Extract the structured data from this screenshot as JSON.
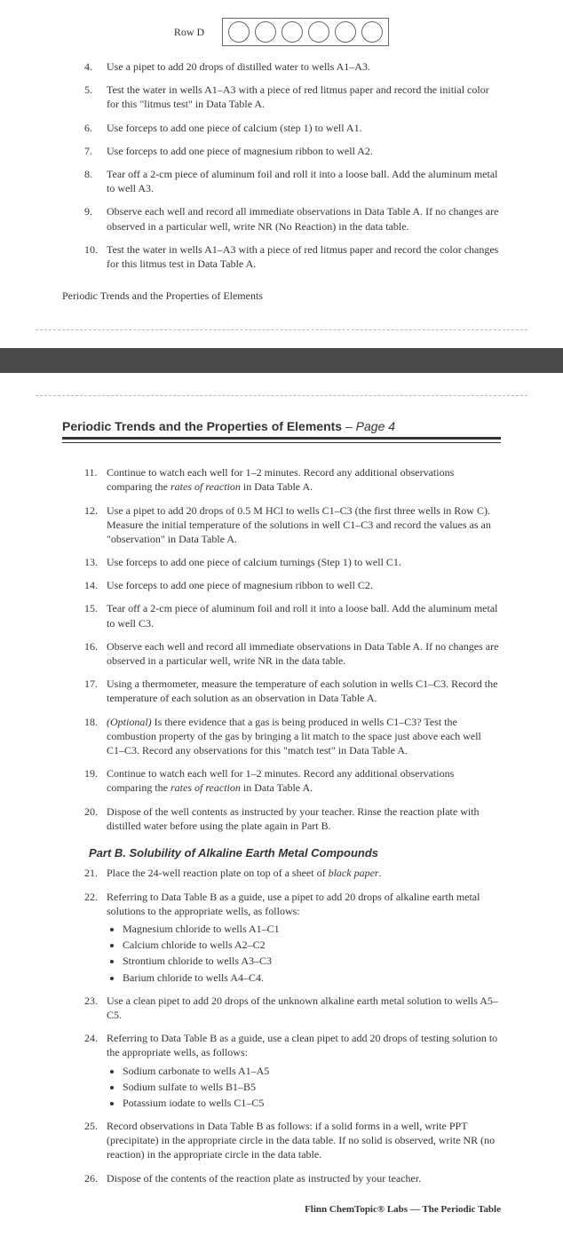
{
  "rowD": {
    "label": "Row D"
  },
  "stepsTop": [
    {
      "n": "4.",
      "t": "Use a pipet to add 20 drops of distilled water to wells A1–A3."
    },
    {
      "n": "5.",
      "t": "Test the water in wells A1–A3 with a piece of red litmus paper and record the initial color for this \"litmus test\" in Data Table A."
    },
    {
      "n": "6.",
      "t": "Use forceps to add one piece of calcium (step 1) to well A1."
    },
    {
      "n": "7.",
      "t": "Use forceps to add one piece of magnesium ribbon to well A2."
    },
    {
      "n": "8.",
      "t": "Tear off a 2-cm piece of aluminum foil and roll it into a loose ball. Add the aluminum metal to well A3."
    },
    {
      "n": "9.",
      "t": "Observe each well and record all immediate observations in Data Table A. If no changes are observed in a particular well, write NR (No Reaction) in the data table."
    },
    {
      "n": "10.",
      "t": "Test the water in wells A1–A3 with a piece of red litmus paper and record the color changes for this litmus test in Data Table A."
    }
  ],
  "footerLabel": "Periodic Trends and the Properties of Elements",
  "pageTitle": {
    "main": "Periodic Trends and the Properties of Elements",
    "suffix": " – Page 4"
  },
  "steps11_20": [
    {
      "n": "11.",
      "html": "Continue to watch each well for 1–2 minutes. Record any additional observations comparing the <em>rates of reaction</em> in Data Table A."
    },
    {
      "n": "12.",
      "html": "Use a pipet to add 20 drops of 0.5 M HCl to wells C1–C3 (the first three wells in Row C). Measure the initial temperature of the solutions in well C1–C3 and record the values as an \"observation\" in Data Table A."
    },
    {
      "n": "13.",
      "html": "Use forceps to add one piece of calcium turnings (Step 1) to well C1."
    },
    {
      "n": "14.",
      "html": "Use forceps to add one piece of magnesium ribbon to well C2."
    },
    {
      "n": "15.",
      "html": "Tear off a 2-cm piece of aluminum foil and roll it into a loose ball. Add the aluminum metal to well C3."
    },
    {
      "n": "16.",
      "html": "Observe each well and record all immediate observations in Data Table A. If no changes are observed in a particular well, write NR in the data table."
    },
    {
      "n": "17.",
      "html": "Using a thermometer, measure the temperature of each solution in wells C1–C3. Record the temperature of each solution as an observation in Data Table A."
    },
    {
      "n": "18.",
      "html": "<em>(Optional)</em> Is there evidence that a gas is being produced in wells C1–C3? Test the combustion property of the gas by bringing a lit match to the space just above each well C1–C3. Record any observations for this \"match test\" in Data Table A."
    },
    {
      "n": "19.",
      "html": "Continue to watch each well for 1–2 minutes. Record any additional observations comparing the <em>rates of reaction</em> in Data Table A."
    },
    {
      "n": "20.",
      "html": "Dispose of the well contents as instructed by your teacher. Rinse the reaction plate with distilled water before using the plate again in Part B."
    }
  ],
  "partB": {
    "heading": "Part B.  Solubility of Alkaline Earth Metal Compounds"
  },
  "steps21_26": [
    {
      "n": "21.",
      "html": "Place the 24-well reaction plate on top of a sheet of <em>black paper</em>."
    },
    {
      "n": "22.",
      "html": "Referring to Data Table B as a guide, use a pipet to add 20 drops of alkaline earth metal solutions to the appropriate wells, as follows:",
      "bullets": [
        "Magnesium chloride to wells A1–C1",
        "Calcium chloride to wells A2–C2",
        "Strontium chloride to wells A3–C3",
        "Barium chloride to wells A4–C4."
      ]
    },
    {
      "n": "23.",
      "html": "Use a clean pipet to add 20 drops of the unknown alkaline earth metal solution to wells A5–C5."
    },
    {
      "n": "24.",
      "html": "Referring to Data Table B as a guide, use a clean pipet to add 20 drops of testing solution to the appropriate wells, as follows:",
      "bullets": [
        "Sodium carbonate to wells A1–A5",
        "Sodium sulfate to wells B1–B5",
        "Potassium iodate to wells C1–C5"
      ]
    },
    {
      "n": "25.",
      "html": "Record observations in Data Table B as follows: if a solid forms in a well, write PPT (precipitate) in the appropriate circle in the data table. If no solid is observed, write NR (no reaction) in the appropriate circle in the data table."
    },
    {
      "n": "26.",
      "html": "Dispose of the contents of the reaction plate as instructed by your teacher."
    }
  ],
  "footerNote": "Flinn ChemTopic® Labs — The Periodic Table"
}
